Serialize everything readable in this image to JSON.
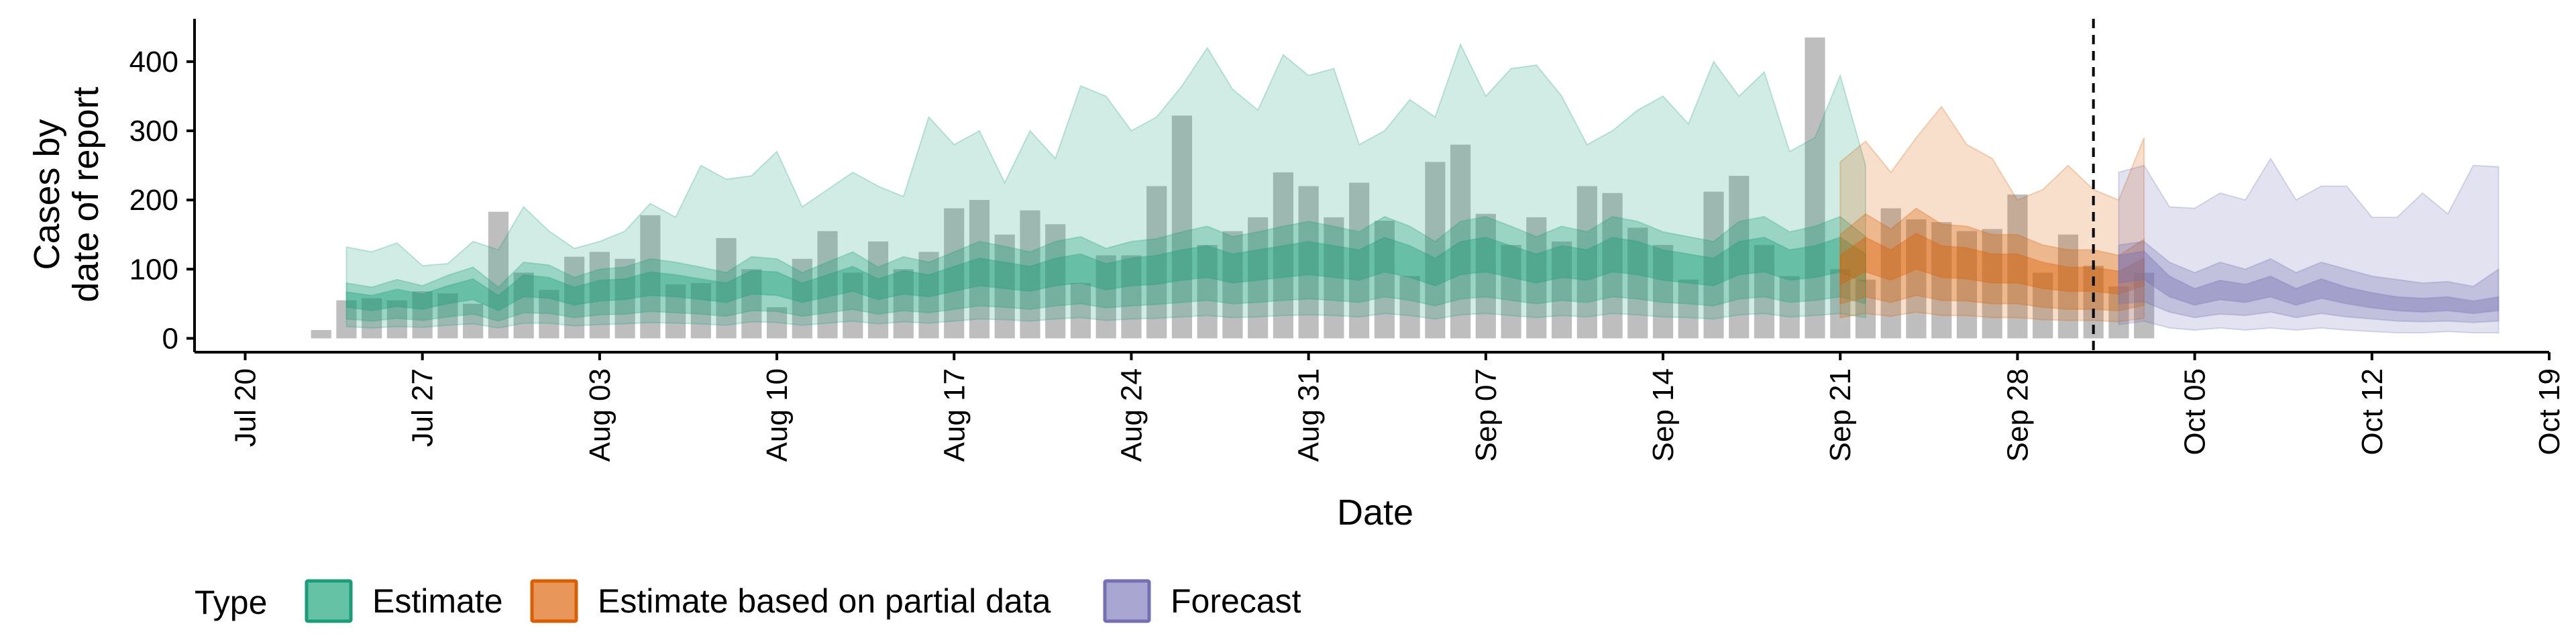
{
  "chart_data": {
    "type": "bar",
    "title": "",
    "xlabel": "Date",
    "ylabel_lines": [
      "Cases by",
      "date of report"
    ],
    "ylim": [
      -20,
      460
    ],
    "y_ticks": [
      0,
      100,
      200,
      300,
      400
    ],
    "x_range": [
      "2020-07-18",
      "2020-10-19"
    ],
    "x_ticks": [
      {
        "date": "2020-07-20",
        "label": "Jul 20"
      },
      {
        "date": "2020-07-27",
        "label": "Jul 27"
      },
      {
        "date": "2020-08-03",
        "label": "Aug 03"
      },
      {
        "date": "2020-08-10",
        "label": "Aug 10"
      },
      {
        "date": "2020-08-17",
        "label": "Aug 17"
      },
      {
        "date": "2020-08-24",
        "label": "Aug 24"
      },
      {
        "date": "2020-08-31",
        "label": "Aug 31"
      },
      {
        "date": "2020-09-07",
        "label": "Sep 07"
      },
      {
        "date": "2020-09-14",
        "label": "Sep 14"
      },
      {
        "date": "2020-09-21",
        "label": "Sep 21"
      },
      {
        "date": "2020-09-28",
        "label": "Sep 28"
      },
      {
        "date": "2020-10-05",
        "label": "Oct 05"
      },
      {
        "date": "2020-10-12",
        "label": "Oct 12"
      },
      {
        "date": "2020-10-19",
        "label": "Oct 19"
      }
    ],
    "forecast_cutoff_date": "2020-10-01",
    "grid": false,
    "legend_position": "bottom-left",
    "legend": {
      "title": "Type",
      "entries": [
        {
          "label": "Estimate",
          "fill": "#66c2a5",
          "stroke": "#1b9e77"
        },
        {
          "label": "Estimate based on partial data",
          "fill": "#e8965a",
          "stroke": "#d95f02"
        },
        {
          "label": "Forecast",
          "fill": "#a9a6d1",
          "stroke": "#7570b3"
        }
      ]
    },
    "colors": {
      "bars": "#b3b3b3",
      "estimate": "#1b9e77",
      "partial": "#d95f02",
      "forecast": "#7570b3",
      "cutoff_line": "#000000"
    },
    "reported_cases": {
      "start_date": "2020-07-23",
      "values": [
        12,
        55,
        58,
        55,
        68,
        65,
        50,
        183,
        95,
        70,
        118,
        125,
        115,
        178,
        78,
        80,
        145,
        100,
        45,
        115,
        155,
        95,
        140,
        100,
        125,
        188,
        200,
        150,
        185,
        165,
        80,
        120,
        120,
        220,
        322,
        135,
        155,
        175,
        240,
        220,
        175,
        225,
        170,
        90,
        255,
        280,
        180,
        135,
        175,
        140,
        220,
        210,
        160,
        135,
        85,
        212,
        235,
        135,
        90,
        435,
        100,
        85,
        188,
        172,
        168,
        155,
        158,
        208,
        95,
        150,
        105,
        75,
        95
      ]
    },
    "series": [
      {
        "name": "Estimate",
        "start_date": "2020-07-24",
        "median": [
          55,
          50,
          58,
          52,
          62,
          70,
          50,
          75,
          72,
          60,
          68,
          70,
          78,
          75,
          70,
          65,
          80,
          78,
          65,
          75,
          85,
          70,
          80,
          75,
          85,
          95,
          90,
          85,
          95,
          100,
          88,
          95,
          98,
          105,
          110,
          100,
          105,
          110,
          115,
          110,
          105,
          120,
          110,
          95,
          115,
          120,
          110,
          100,
          110,
          105,
          120,
          115,
          105,
          100,
          95,
          115,
          120,
          105,
          110,
          120,
          100
        ],
        "lower_50": [
          45,
          40,
          46,
          42,
          50,
          56,
          40,
          60,
          58,
          48,
          54,
          56,
          62,
          60,
          56,
          52,
          64,
          62,
          52,
          60,
          68,
          56,
          64,
          60,
          68,
          76,
          72,
          68,
          76,
          80,
          70,
          76,
          78,
          84,
          88,
          80,
          84,
          88,
          92,
          88,
          84,
          96,
          88,
          76,
          92,
          96,
          88,
          80,
          88,
          84,
          96,
          92,
          84,
          80,
          76,
          92,
          96,
          84,
          88,
          96,
          80
        ],
        "upper_50": [
          67,
          62,
          71,
          64,
          76,
          86,
          62,
          92,
          88,
          74,
          84,
          86,
          96,
          92,
          86,
          80,
          98,
          96,
          80,
          92,
          104,
          86,
          98,
          92,
          104,
          116,
          110,
          104,
          116,
          122,
          108,
          116,
          120,
          128,
          134,
          122,
          128,
          134,
          140,
          134,
          128,
          146,
          134,
          116,
          140,
          146,
          134,
          122,
          134,
          128,
          146,
          140,
          128,
          122,
          116,
          140,
          146,
          128,
          134,
          146,
          122
        ],
        "lower_90": [
          28,
          25,
          29,
          26,
          31,
          35,
          25,
          37,
          36,
          30,
          34,
          35,
          39,
          37,
          35,
          32,
          40,
          39,
          32,
          37,
          42,
          35,
          40,
          37,
          42,
          47,
          45,
          42,
          47,
          50,
          44,
          47,
          49,
          52,
          55,
          50,
          52,
          55,
          57,
          55,
          52,
          60,
          55,
          47,
          57,
          60,
          55,
          50,
          55,
          52,
          60,
          57,
          52,
          50,
          47,
          57,
          60,
          52,
          55,
          60,
          50
        ],
        "upper_90": [
          80,
          74,
          85,
          76,
          91,
          103,
          74,
          110,
          106,
          88,
          100,
          103,
          115,
          110,
          103,
          95,
          118,
          115,
          95,
          110,
          125,
          103,
          118,
          110,
          125,
          140,
          133,
          125,
          140,
          147,
          130,
          140,
          144,
          154,
          162,
          147,
          154,
          162,
          169,
          162,
          154,
          176,
          162,
          140,
          169,
          176,
          162,
          147,
          162,
          154,
          176,
          169,
          154,
          147,
          140,
          169,
          176,
          154,
          162,
          176,
          147
        ],
        "lower_95": [
          17,
          15,
          17,
          16,
          19,
          21,
          15,
          22,
          22,
          18,
          20,
          21,
          23,
          22,
          21,
          19,
          24,
          23,
          19,
          22,
          25,
          21,
          24,
          22,
          25,
          28,
          27,
          25,
          28,
          30,
          26,
          28,
          29,
          31,
          33,
          30,
          31,
          33,
          34,
          33,
          31,
          36,
          33,
          28,
          34,
          36,
          33,
          30,
          33,
          31,
          36,
          34,
          31,
          30,
          28,
          34,
          36,
          31,
          33,
          36,
          30
        ],
        "upper_95": [
          132,
          125,
          138,
          105,
          108,
          140,
          128,
          190,
          155,
          130,
          140,
          155,
          195,
          175,
          250,
          230,
          235,
          270,
          190,
          215,
          240,
          220,
          205,
          320,
          280,
          300,
          225,
          300,
          260,
          365,
          350,
          300,
          320,
          365,
          420,
          360,
          330,
          410,
          380,
          390,
          280,
          300,
          345,
          320,
          425,
          350,
          390,
          395,
          350,
          280,
          300,
          330,
          350,
          310,
          400,
          350,
          385,
          270,
          290,
          380,
          250
        ]
      },
      {
        "name": "Estimate based on partial data",
        "start_date": "2020-09-21",
        "median": [
          100,
          120,
          105,
          125,
          110,
          108,
          100,
          100,
          90,
          85,
          85,
          80,
          95
        ],
        "lower_50": [
          78,
          96,
          84,
          100,
          88,
          86,
          80,
          80,
          72,
          68,
          68,
          64,
          76
        ],
        "upper_50": [
          120,
          146,
          128,
          152,
          134,
          131,
          122,
          122,
          110,
          103,
          103,
          97,
          116
        ],
        "lower_90": [
          50,
          60,
          52,
          62,
          55,
          54,
          50,
          50,
          45,
          42,
          42,
          40,
          48
        ],
        "upper_90": [
          150,
          180,
          158,
          188,
          165,
          162,
          150,
          150,
          135,
          128,
          128,
          120,
          143
        ],
        "lower_95": [
          30,
          36,
          32,
          38,
          33,
          33,
          30,
          30,
          27,
          26,
          26,
          24,
          29
        ],
        "upper_95": [
          255,
          285,
          240,
          290,
          335,
          280,
          260,
          200,
          215,
          250,
          215,
          200,
          290
        ]
      },
      {
        "name": "Forecast",
        "start_date": "2020-10-02",
        "median": [
          100,
          105,
          75,
          60,
          70,
          65,
          75,
          60,
          72,
          62,
          55,
          50,
          48,
          50,
          45,
          50
        ],
        "lower_50": [
          80,
          85,
          60,
          48,
          56,
          52,
          60,
          48,
          58,
          50,
          44,
          40,
          38,
          40,
          36,
          40
        ],
        "upper_50": [
          120,
          126,
          90,
          72,
          84,
          78,
          90,
          72,
          86,
          74,
          66,
          60,
          58,
          60,
          54,
          60
        ],
        "lower_90": [
          50,
          53,
          38,
          30,
          35,
          33,
          38,
          30,
          36,
          31,
          28,
          25,
          24,
          25,
          23,
          25
        ],
        "upper_90": [
          135,
          140,
          110,
          95,
          110,
          100,
          115,
          95,
          110,
          100,
          90,
          85,
          80,
          82,
          75,
          100
        ],
        "lower_95": [
          20,
          25,
          15,
          12,
          15,
          12,
          15,
          12,
          15,
          12,
          10,
          8,
          8,
          10,
          8,
          8
        ],
        "upper_95": [
          240,
          250,
          190,
          188,
          210,
          200,
          260,
          200,
          220,
          220,
          175,
          175,
          210,
          180,
          250,
          248
        ]
      }
    ]
  }
}
